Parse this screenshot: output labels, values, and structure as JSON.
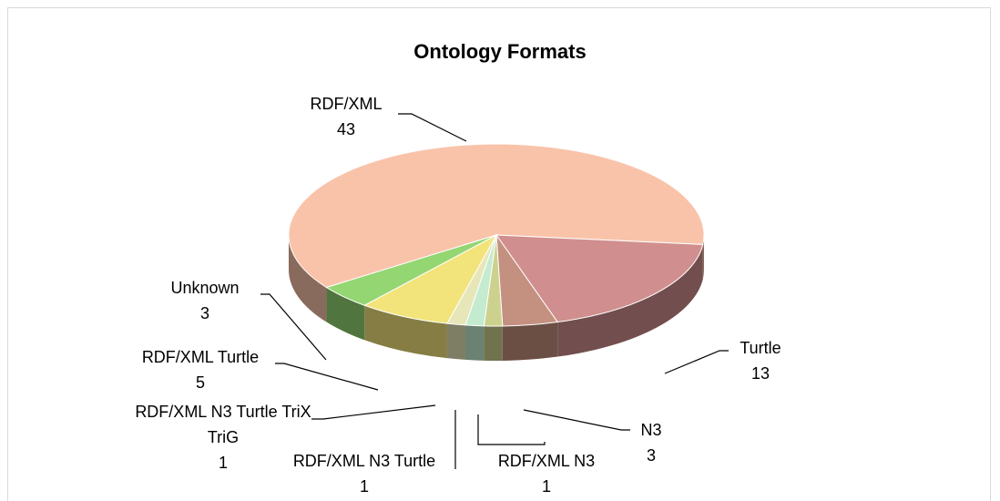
{
  "chart_data": {
    "type": "pie3d",
    "title": "Ontology Formats",
    "categories": [
      "RDF/XML",
      "Turtle",
      "N3",
      "RDF/XML N3",
      "RDF/XML N3 Turtle",
      "RDF/XML N3 Turtle TriX TriG",
      "RDF/XML Turtle",
      "Unknown"
    ],
    "values": [
      43,
      13,
      3,
      1,
      1,
      1,
      5,
      3
    ],
    "colors": [
      "#f9c3aa",
      "#d08f8e",
      "#c4907f",
      "#cdd18e",
      "#c4ebcf",
      "#e6e6b9",
      "#f2e37a",
      "#93d672"
    ]
  }
}
